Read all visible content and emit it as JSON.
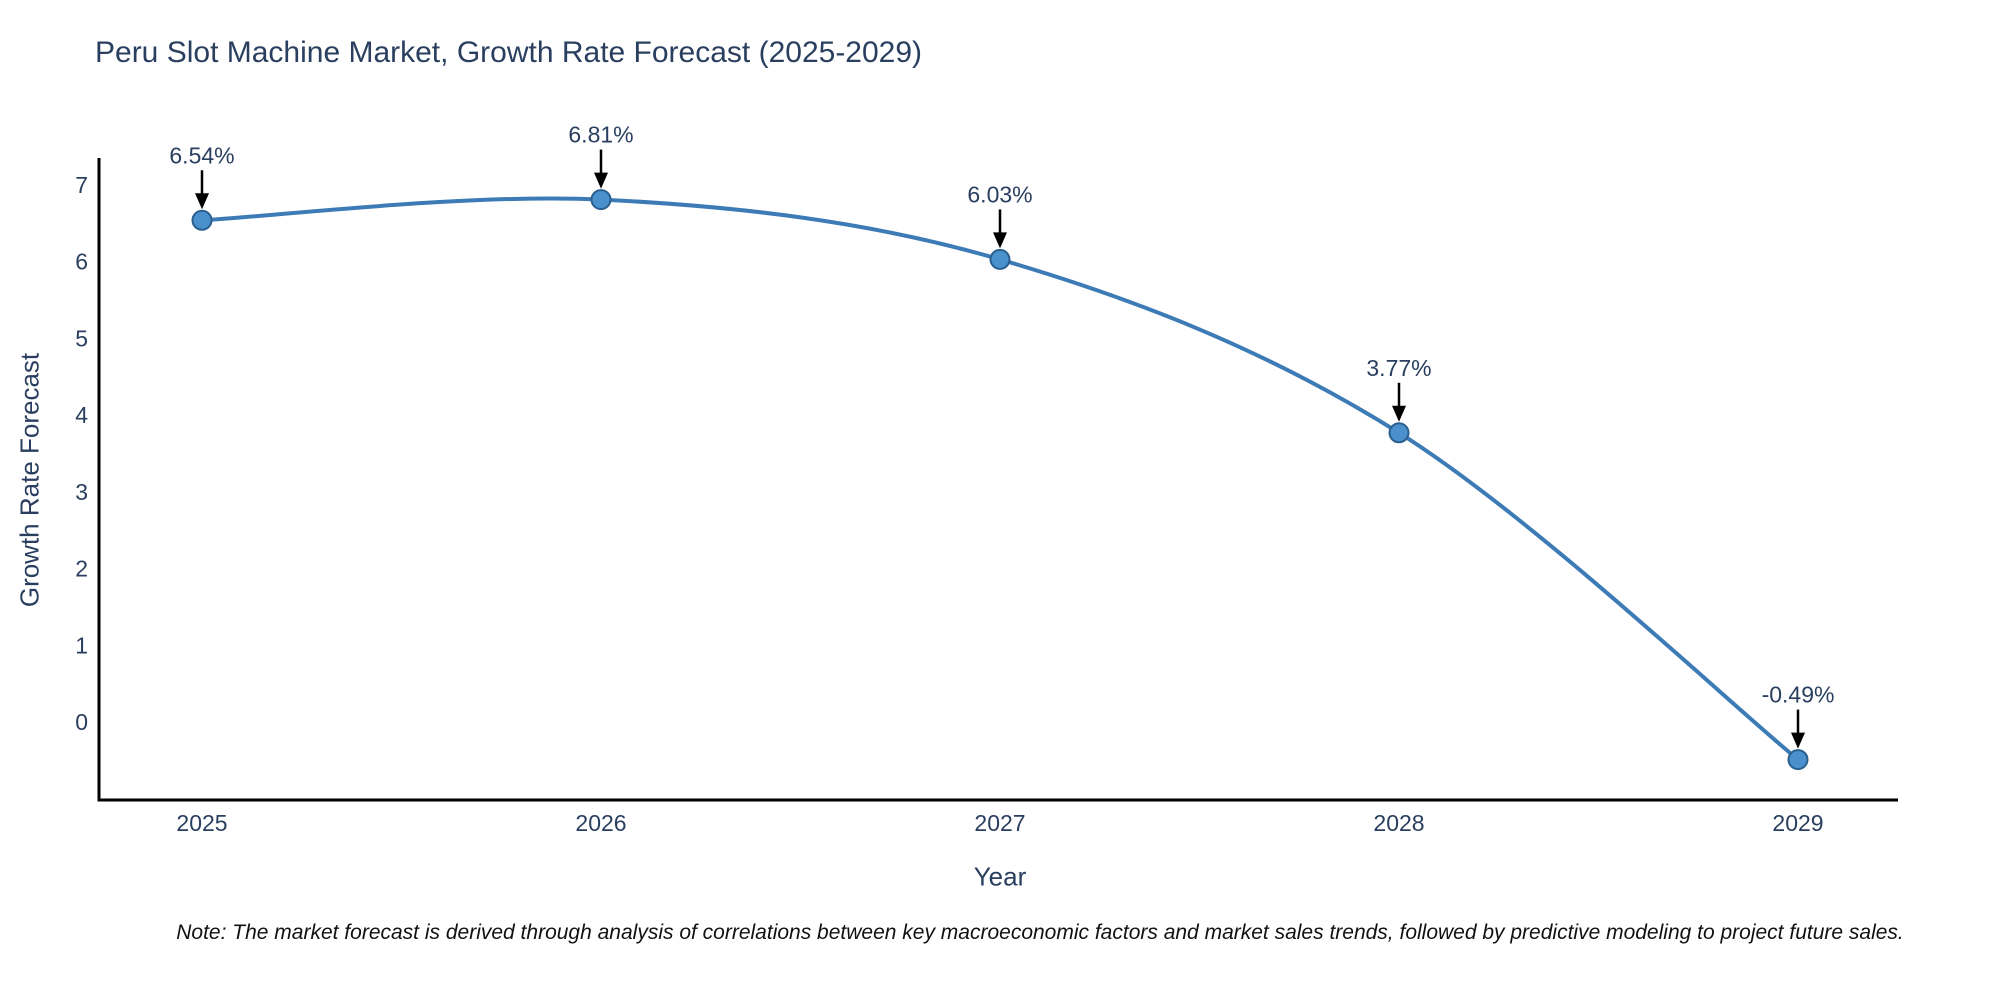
{
  "title": "Peru Slot Machine Market, Growth Rate Forecast (2025-2029)",
  "note": "Note: The market forecast is derived through analysis of correlations between key macroeconomic factors and market sales trends, followed by predictive modeling to project future sales.",
  "chart_data": {
    "type": "line",
    "title": "Peru Slot Machine Market, Growth Rate Forecast (2025-2029)",
    "xlabel": "Year",
    "ylabel": "Growth Rate Forecast",
    "x": [
      2025,
      2026,
      2027,
      2028,
      2029
    ],
    "series": [
      {
        "name": "Growth Rate Forecast",
        "values": [
          6.54,
          6.81,
          6.03,
          3.77,
          -0.49
        ]
      }
    ],
    "point_labels": [
      "6.54%",
      "6.81%",
      "6.03%",
      "3.77%",
      "-0.49%"
    ],
    "yticks": [
      0,
      1,
      2,
      3,
      4,
      5,
      6,
      7
    ],
    "ylim": [
      -1.02,
      7.35
    ],
    "xlim": [
      2024.74,
      2029.25
    ],
    "line_shape": "spline",
    "grid": false,
    "legend": "none",
    "markers": true,
    "annotation_arrows": true,
    "colors": {
      "line": "#3d7bb6",
      "marker_fill": "#4a90cc",
      "marker_edge": "#2a5f8e",
      "axis_line": "#000000",
      "tick_text": "#2a3f5f",
      "annotation_text": "#2a3f5f",
      "arrow": "#000000",
      "title_text": "#2a3f5f",
      "background": "#ffffff"
    }
  }
}
